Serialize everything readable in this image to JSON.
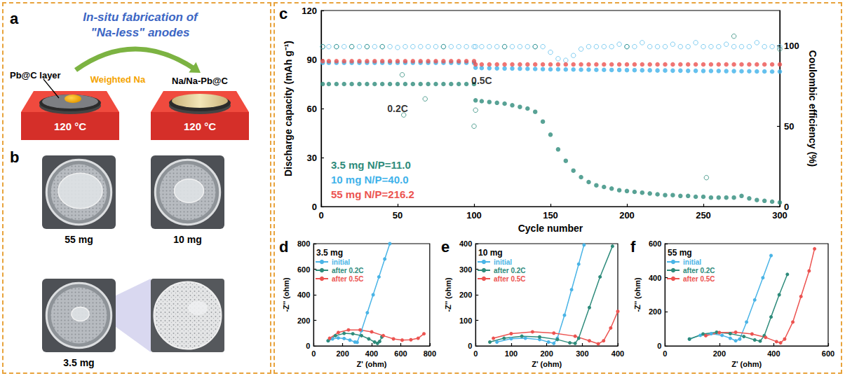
{
  "figure": {
    "panel_a": {
      "letter": "a",
      "title": [
        "In-situ fabrication of",
        "\"Na-less\" anodes"
      ],
      "layer_label": "Pb@C layer",
      "na_label": "Weighted Na",
      "product_label": "Na/Na-Pb@C",
      "temperature": "120 °C"
    },
    "panel_b": {
      "letter": "b",
      "photos": [
        "55 mg",
        "10 mg",
        "3.5 mg"
      ]
    }
  },
  "chart_data": [
    {
      "type": "scatter",
      "panel": "c",
      "xlabel": "Cycle number",
      "ylabel": "Discharge capacity (mAh g⁻¹)",
      "y2label": "Coulombic efficiency (%)",
      "xlim": [
        0,
        300
      ],
      "xticks": [
        0,
        50,
        100,
        150,
        200,
        250,
        300
      ],
      "ylim": [
        0,
        120
      ],
      "yticks": [
        0,
        30,
        60,
        90,
        120
      ],
      "y2lim": [
        0,
        122
      ],
      "y2ticks": [
        0,
        50,
        100
      ],
      "grid": false,
      "legend": "lower left",
      "annotations": [
        {
          "text": "0.2C",
          "x": 50,
          "y": 60
        },
        {
          "text": "0.5C",
          "x": 105,
          "y": 77
        }
      ],
      "x": [
        1,
        5,
        10,
        15,
        20,
        25,
        30,
        35,
        40,
        45,
        50,
        55,
        60,
        65,
        70,
        75,
        80,
        85,
        90,
        95,
        100,
        101,
        105,
        110,
        115,
        120,
        125,
        130,
        135,
        140,
        145,
        150,
        155,
        160,
        165,
        170,
        175,
        180,
        185,
        190,
        195,
        200,
        205,
        210,
        215,
        220,
        225,
        230,
        235,
        240,
        245,
        250,
        255,
        260,
        265,
        270,
        275,
        280,
        285,
        290,
        295,
        300
      ],
      "series": [
        {
          "name": "3.5 mg N/P=11.0",
          "color": "#2e8b7b",
          "marker": "circle",
          "values": [
            75,
            75,
            75,
            75,
            75,
            75,
            75,
            75,
            75,
            75,
            75,
            75,
            75,
            75,
            75,
            75,
            75,
            75,
            75,
            75,
            75,
            65,
            64.5,
            64,
            63.5,
            63,
            62,
            61,
            60,
            58,
            52,
            44,
            35,
            28,
            22,
            18,
            15,
            13,
            12,
            11,
            10,
            9.5,
            9,
            8.5,
            8,
            7.5,
            7,
            7,
            6.5,
            6.5,
            6,
            6,
            5.5,
            5.5,
            5.5,
            5.5,
            6.5,
            5,
            4,
            3.5,
            3,
            2.5
          ]
        },
        {
          "name": "10 mg N/P=40.0",
          "color": "#3fb2ea",
          "marker": "circle",
          "values": [
            88,
            88,
            88,
            88,
            88,
            88,
            88,
            88,
            88,
            88,
            88,
            88,
            88,
            88,
            88,
            88,
            88,
            88,
            88,
            88,
            88,
            85,
            84.8,
            84.7,
            84.6,
            84.5,
            84.5,
            84.4,
            84.3,
            84.2,
            84.1,
            84,
            84,
            83.9,
            83.9,
            83.8,
            83.8,
            83.7,
            83.7,
            83.6,
            83.6,
            83.5,
            83.5,
            83.4,
            83.4,
            83.3,
            83.3,
            83.2,
            83.2,
            83.1,
            83.1,
            83,
            83,
            83,
            82.9,
            82.9,
            82.8,
            82.8,
            82.7,
            82.7,
            82.6,
            82.6
          ]
        },
        {
          "name": "55 mg N/P=216.2",
          "color": "#ec5350",
          "marker": "circle",
          "values": [
            89,
            89,
            89,
            89,
            89,
            89,
            89,
            89,
            89,
            89,
            89,
            89,
            89,
            89,
            89,
            89,
            89,
            89,
            89,
            89,
            89,
            87,
            87,
            87,
            87,
            87,
            87,
            87,
            87,
            87,
            87,
            87,
            87,
            87,
            87,
            87,
            87,
            87,
            87,
            87,
            87,
            87,
            87,
            87,
            87,
            87,
            87,
            87,
            87,
            87,
            87,
            87,
            87,
            87,
            87,
            87,
            87,
            87,
            87,
            87,
            87,
            87
          ]
        },
        {
          "axis": "y2",
          "color": "#63c0ec",
          "marker": "circle-open",
          "values": [
            99.5,
            99.5,
            99.5,
            99.5,
            99.5,
            99.5,
            99.5,
            99.5,
            99.5,
            99.5,
            99,
            99.5,
            99.5,
            99.5,
            99.5,
            99.5,
            99.5,
            99.5,
            99.5,
            99.5,
            99.5,
            99.5,
            99.5,
            99.5,
            99.5,
            99.5,
            99.5,
            99.5,
            99.5,
            99.5,
            99.5,
            96,
            92,
            91,
            94,
            98,
            99.5,
            99.5,
            99.5,
            99.5,
            101,
            99.5,
            99.5,
            102,
            99.5,
            99.5,
            99.5,
            101,
            99.5,
            99.5,
            102,
            99.5,
            99.5,
            99.5,
            101,
            99.5,
            99.5,
            99.5,
            102,
            99.5,
            99.5,
            99.5
          ]
        },
        {
          "axis": "y2",
          "color": "#2e8b7b",
          "marker": "circle-open",
          "x": [
            1,
            10,
            20,
            30,
            40,
            53,
            54,
            68,
            80,
            100,
            101,
            120,
            140,
            200,
            252,
            270,
            300
          ],
          "values": [
            99.5,
            99.5,
            99.5,
            99.5,
            99.5,
            82,
            57,
            67,
            99.5,
            50,
            60,
            99.5,
            99.5,
            99.5,
            18,
            106,
            98
          ]
        }
      ]
    },
    {
      "type": "line",
      "panel": "d",
      "title": "3.5 mg",
      "xlabel": "Z' (ohm)",
      "ylabel": "-Z'' (ohm)",
      "xlim": [
        0,
        800
      ],
      "xticks": [
        0,
        200,
        400,
        600,
        800
      ],
      "ylim": [
        0,
        800
      ],
      "yticks": [
        0,
        200,
        400,
        600,
        800
      ],
      "grid": false,
      "legend": "upper left",
      "series": [
        {
          "name": "initial",
          "color": "#4ab4e6",
          "marker": "circle",
          "line_style": "solid",
          "x": [
            100,
            130,
            170,
            210,
            250,
            285,
            300,
            330,
            370,
            410,
            450,
            490,
            525
          ],
          "values": [
            40,
            55,
            62,
            58,
            45,
            30,
            28,
            120,
            260,
            400,
            540,
            680,
            800
          ]
        },
        {
          "name": "after 0.2C",
          "color": "#2e8b7b",
          "marker": "circle",
          "line_style": "solid",
          "x": [
            100,
            150,
            210,
            270,
            330,
            380,
            420,
            440,
            455,
            470
          ],
          "values": [
            40,
            80,
            98,
            95,
            80,
            55,
            30,
            20,
            35,
            70
          ]
        },
        {
          "name": "after 0.5C",
          "color": "#ec5350",
          "marker": "circle",
          "line_style": "solid",
          "x": [
            110,
            170,
            240,
            320,
            400,
            480,
            550,
            610,
            670,
            720,
            760
          ],
          "values": [
            60,
            105,
            125,
            125,
            110,
            80,
            55,
            45,
            48,
            60,
            95
          ]
        }
      ]
    },
    {
      "type": "line",
      "panel": "e",
      "title": "10 mg",
      "xlabel": "Z' (ohm)",
      "ylabel": "-Z'' (ohm)",
      "xlim": [
        0,
        400
      ],
      "xticks": [
        0,
        100,
        200,
        300,
        400
      ],
      "ylim": [
        0,
        400
      ],
      "yticks": [
        0,
        100,
        200,
        300,
        400
      ],
      "grid": false,
      "legend": "upper left",
      "series": [
        {
          "name": "initial",
          "color": "#4ab4e6",
          "marker": "circle",
          "line_style": "solid",
          "x": [
            60,
            100,
            140,
            180,
            205,
            220,
            230,
            250,
            270,
            290,
            305
          ],
          "values": [
            15,
            28,
            30,
            25,
            15,
            10,
            30,
            120,
            220,
            320,
            395
          ]
        },
        {
          "name": "after 0.2C",
          "color": "#2e8b7b",
          "marker": "circle",
          "line_style": "solid",
          "x": [
            40,
            80,
            130,
            180,
            230,
            265,
            280,
            290,
            320,
            350,
            385
          ],
          "values": [
            15,
            30,
            38,
            35,
            25,
            12,
            10,
            30,
            150,
            270,
            390
          ]
        },
        {
          "name": "after 0.5C",
          "color": "#ec5350",
          "marker": "circle",
          "line_style": "solid",
          "x": [
            50,
            100,
            160,
            220,
            280,
            320,
            345,
            360,
            380,
            400
          ],
          "values": [
            30,
            48,
            55,
            50,
            38,
            20,
            8,
            20,
            70,
            135
          ]
        }
      ]
    },
    {
      "type": "line",
      "panel": "f",
      "title": "55 mg",
      "xlabel": "Z' (ohm)",
      "ylabel": "-Z'' (ohm)",
      "xlim": [
        0,
        600
      ],
      "xticks": [
        0,
        200,
        400,
        600
      ],
      "ylim": [
        0,
        600
      ],
      "yticks": [
        0,
        200,
        400,
        600
      ],
      "grid": false,
      "legend": "upper left",
      "series": [
        {
          "name": "initial",
          "color": "#4ab4e6",
          "marker": "circle",
          "line_style": "solid",
          "x": [
            90,
            130,
            170,
            210,
            240,
            260,
            275,
            300,
            330,
            360,
            390
          ],
          "values": [
            40,
            62,
            72,
            62,
            45,
            30,
            40,
            140,
            270,
            400,
            530
          ]
        },
        {
          "name": "after 0.2C",
          "color": "#2e8b7b",
          "marker": "circle",
          "line_style": "solid",
          "x": [
            90,
            140,
            190,
            240,
            290,
            330,
            350,
            365,
            390,
            420,
            450
          ],
          "values": [
            40,
            70,
            80,
            72,
            55,
            35,
            28,
            60,
            170,
            300,
            420
          ]
        },
        {
          "name": "after 0.5C",
          "color": "#ec5350",
          "marker": "circle",
          "line_style": "solid",
          "x": [
            150,
            200,
            260,
            320,
            370,
            410,
            425,
            440,
            470,
            500,
            530,
            550
          ],
          "values": [
            60,
            78,
            80,
            70,
            50,
            25,
            18,
            40,
            140,
            290,
            440,
            570
          ]
        }
      ]
    }
  ]
}
